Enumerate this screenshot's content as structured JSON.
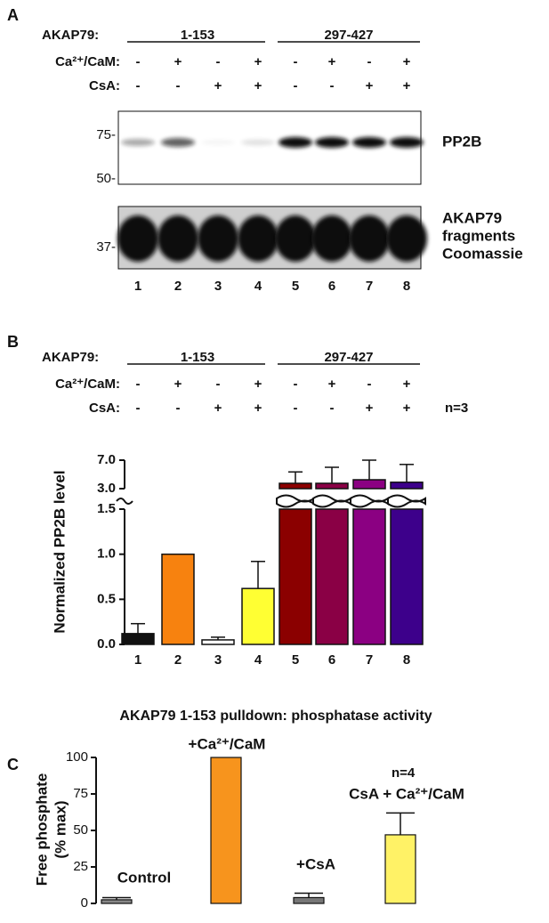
{
  "blot": {
    "label": "A",
    "row_labels": [
      "AKAP79:",
      "Ca²⁺/CaM:",
      "CsA:"
    ],
    "groups": [
      "1-153",
      "297-427"
    ],
    "ca": [
      "-",
      "+",
      "-",
      "+",
      "-",
      "+",
      "-",
      "+"
    ],
    "csa": [
      "-",
      "-",
      "+",
      "+",
      "-",
      "-",
      "+",
      "+"
    ],
    "markers_top": [
      "75-",
      "50-"
    ],
    "marker_bottom": "37-",
    "band_label": "PP2B",
    "stain_labels": [
      "AKAP79",
      "fragments",
      "Coomassie"
    ],
    "lanes": [
      "1",
      "2",
      "3",
      "4",
      "5",
      "6",
      "7",
      "8"
    ]
  },
  "chart_data": [
    {
      "type": "bar",
      "panel_label": "B",
      "row_labels": [
        "AKAP79:",
        "Ca²⁺/CaM:",
        "CsA:"
      ],
      "groups": [
        "1-153",
        "297-427"
      ],
      "ca": [
        "-",
        "+",
        "-",
        "+",
        "-",
        "+",
        "-",
        "+"
      ],
      "csa": [
        "-",
        "-",
        "+",
        "+",
        "-",
        "-",
        "+",
        "+"
      ],
      "note": "n=3",
      "y_label": "Normalized PP2B level",
      "categories": [
        "1",
        "2",
        "3",
        "4",
        "5",
        "6",
        "7",
        "8"
      ],
      "values": [
        0.12,
        1.0,
        0.05,
        0.62,
        3.75,
        3.75,
        4.25,
        3.9
      ],
      "errors": [
        0.11,
        0,
        0.03,
        0.3,
        1.6,
        2.25,
        2.75,
        2.5
      ],
      "colors": [
        "#111111",
        "#f7820f",
        "#ffffff",
        "#ffff33",
        "#8b0000",
        "#8a0045",
        "#8b0082",
        "#3d008b"
      ],
      "ylim": [
        0,
        7
      ],
      "y_break": [
        1.5,
        3.0
      ],
      "yticks": [
        {
          "value": 0,
          "label": "0.0"
        },
        {
          "value": 0.5,
          "label": "0.5"
        },
        {
          "value": 1,
          "label": "1.0"
        },
        {
          "value": 1.5,
          "label": "1.5"
        },
        {
          "value": 3,
          "label": "3.0"
        },
        {
          "value": 7,
          "label": "7.0"
        }
      ]
    },
    {
      "type": "bar",
      "panel_label": "C",
      "title": "AKAP79 1-153 pulldown: phosphatase activity",
      "note": "n=4",
      "y_label": [
        "Free phosphate",
        "(% max)"
      ],
      "categories": [
        "Control",
        "+Ca²⁺/CaM",
        "+CsA",
        "CsA + Ca²⁺/CaM"
      ],
      "values": [
        2.5,
        100,
        4,
        47
      ],
      "errors": [
        1.5,
        0,
        3,
        15
      ],
      "colors": [
        "#888888",
        "#f7941d",
        "#777777",
        "#fff266"
      ],
      "ylim": [
        0,
        100
      ],
      "yticks": [
        0,
        25,
        50,
        75,
        100
      ]
    }
  ]
}
